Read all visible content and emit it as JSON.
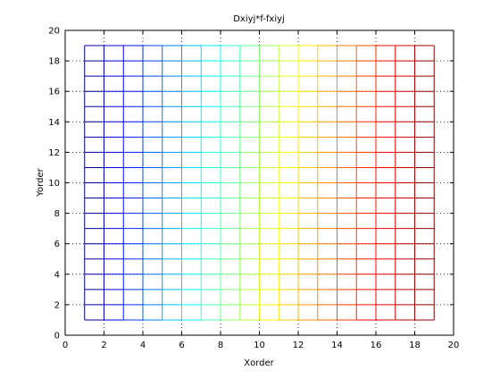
{
  "chart_data": {
    "type": "mesh",
    "title": "Dxiyj*f-fxiyj",
    "xlabel": "Xorder",
    "ylabel": "Yorder",
    "xlim": [
      0,
      20
    ],
    "ylim": [
      0,
      20
    ],
    "x_ticks": [
      0,
      2,
      4,
      6,
      8,
      10,
      12,
      14,
      16,
      18,
      20
    ],
    "y_ticks": [
      0,
      2,
      4,
      6,
      8,
      10,
      12,
      14,
      16,
      18,
      20
    ],
    "grid": true,
    "grid_style": "dotted",
    "mesh_x_range": [
      1,
      19
    ],
    "mesh_y_range": [
      1,
      19
    ],
    "mesh_step": 1,
    "colormap": "jet",
    "color_trend": "value increases left to right (blue at x=1 to red at x=19); slight increase toward lower y in the mid columns",
    "colors": {
      "axes": "#000000",
      "background": "#ffffff"
    }
  }
}
